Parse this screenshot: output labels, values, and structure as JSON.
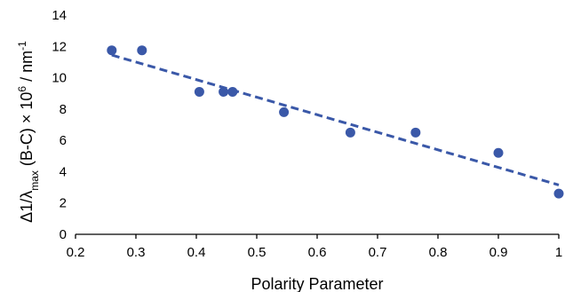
{
  "chart_data": {
    "type": "scatter",
    "title": "",
    "xlabel": "Polarity Parameter",
    "ylabel": {
      "prefix": "Δ",
      "one": "1/",
      "lambda": "λ",
      "max": "max",
      "mid": " (B-C) × 10",
      "exp6": "6",
      "unit": " / nm",
      "expneg1": "-1"
    },
    "xlim": [
      0.2,
      1.0
    ],
    "ylim": [
      0,
      14
    ],
    "xticks": [
      "0.2",
      "0.3",
      "0.4",
      "0.5",
      "0.6",
      "0.7",
      "0.8",
      "0.9",
      "1"
    ],
    "yticks": [
      "0",
      "2",
      "4",
      "6",
      "8",
      "10",
      "12",
      "14"
    ],
    "grid": false,
    "legend": "none",
    "series": [
      {
        "marker": "circle",
        "color": "#3a58a8",
        "x": [
          0.26,
          0.31,
          0.405,
          0.445,
          0.46,
          0.545,
          0.655,
          0.763,
          0.9,
          1.0
        ],
        "y": [
          11.75,
          11.75,
          9.1,
          9.1,
          9.1,
          7.8,
          6.5,
          6.5,
          5.2,
          2.6
        ]
      }
    ],
    "trendline": {
      "style": "dashed",
      "color": "#3a58a8",
      "x": [
        0.26,
        1.0
      ],
      "y": [
        11.45,
        3.15
      ]
    }
  }
}
